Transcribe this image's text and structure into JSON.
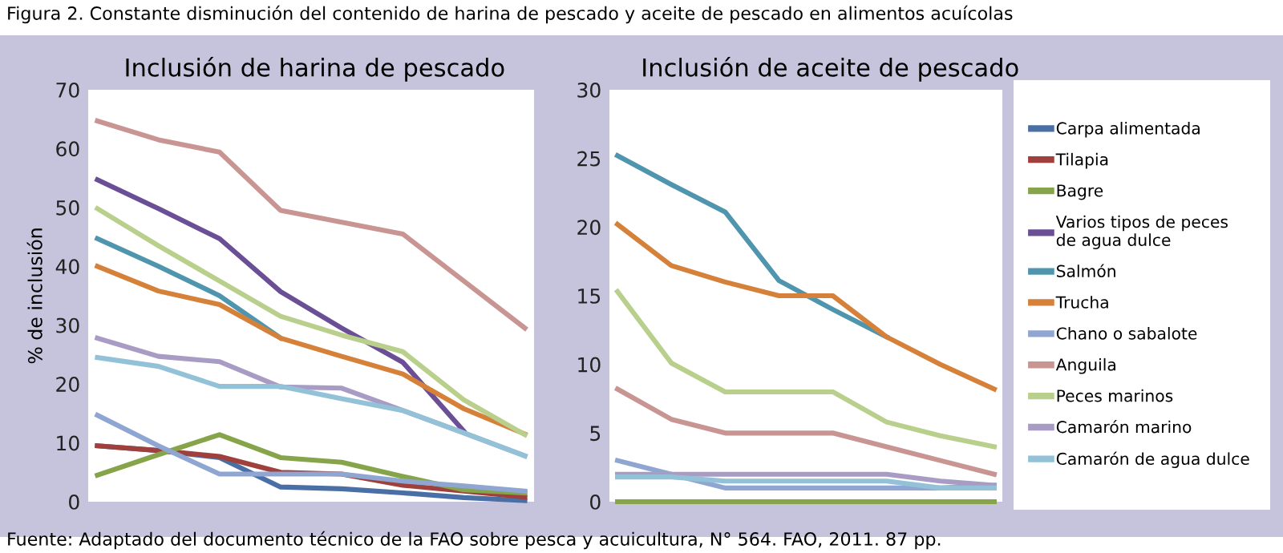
{
  "chart_data": [
    {
      "type": "line",
      "title": "Inclusión de harina de pescado",
      "ylabel": "% de inclusión",
      "annotations": [
        "Figura 2. Constante disminución del contenido de harina de pescado y aceite de pescado en alimentos acuícolas"
      ],
      "categories": [
        null,
        null,
        null,
        null,
        null,
        null,
        null,
        null
      ],
      "ylim": [
        0,
        70
      ],
      "yticks": [
        0,
        10,
        20,
        30,
        40,
        50,
        60,
        70
      ],
      "grid": false,
      "legend": "right",
      "marker": "none",
      "line_style": "solid",
      "series": [
        {
          "name": "Carpa alimentada",
          "color": "#4a6fa5",
          "values": [
            9.5,
            8.7,
            7.5,
            2.5,
            2.2,
            1.5,
            0.7,
            0.2
          ]
        },
        {
          "name": "Tilapia",
          "color": "#a0403c",
          "values": [
            9.5,
            8.7,
            7.7,
            5,
            4.7,
            2.8,
            1.8,
            0.8
          ]
        },
        {
          "name": "Bagre",
          "color": "#86a44a",
          "values": [
            4.5,
            8,
            11.4,
            7.5,
            6.7,
            4.3,
            2,
            1.5
          ]
        },
        {
          "name": "Varios tipos de peces de agua dulce",
          "color": "#6a4f96",
          "values": [
            54.7,
            49.8,
            44.7,
            35.7,
            29.5,
            23.7,
            12,
            null
          ]
        },
        {
          "name": "Salmón",
          "color": "#4f95ad",
          "values": [
            44.7,
            40,
            35,
            27.8,
            null,
            null,
            null,
            null
          ]
        },
        {
          "name": "Trucha",
          "color": "#d6813a",
          "values": [
            40,
            35.8,
            33.5,
            27.8,
            24.7,
            21.7,
            15.8,
            11.5
          ]
        },
        {
          "name": "Chano o sabalote",
          "color": "#8fa6d2",
          "values": [
            14.7,
            9.5,
            4.7,
            4.7,
            4.7,
            3.5,
            2.7,
            1.8
          ]
        },
        {
          "name": "Anguila",
          "color": "#c89593",
          "values": [
            64.7,
            61.5,
            59.4,
            49.5,
            47.5,
            45.5,
            37.5,
            29.5
          ]
        },
        {
          "name": "Peces marinos",
          "color": "#b9cf8c",
          "values": [
            49.8,
            43.5,
            37.5,
            31.5,
            28.3,
            25.5,
            17.3,
            11.4
          ]
        },
        {
          "name": "Camarón marino",
          "color": "#a89cc4",
          "values": [
            27.8,
            24.7,
            23.8,
            19.5,
            19.3,
            15.5,
            11.7,
            7.8
          ]
        },
        {
          "name": "Camarón de agua dulce",
          "color": "#93c2d8",
          "values": [
            24.5,
            23,
            19.6,
            19.6,
            17.5,
            15.5,
            11.7,
            7.8
          ]
        }
      ]
    },
    {
      "type": "line",
      "title": "Inclusión de aceite de pescado",
      "annotations": [
        "Fuente: Adaptado del documento técnico de la FAO sobre pesca y acuicultura, N° 564. FAO, 2011. 87 pp."
      ],
      "categories": [
        null,
        null,
        null,
        null,
        null,
        null,
        null,
        null
      ],
      "ylim": [
        0,
        30
      ],
      "yticks": [
        0,
        5,
        10,
        15,
        20,
        25,
        30
      ],
      "grid": false,
      "marker": "none",
      "line_style": "solid",
      "series": [
        {
          "color": "#86a44a",
          "values": [
            0,
            0,
            0,
            0,
            0,
            0,
            0,
            0
          ]
        },
        {
          "color": "#4f95ad",
          "values": [
            25.2,
            23.1,
            21.1,
            16.1,
            14,
            12,
            null,
            null
          ]
        },
        {
          "color": "#d6813a",
          "values": [
            20.2,
            17.2,
            16,
            15,
            15,
            12,
            10,
            8.2
          ]
        },
        {
          "color": "#8fa6d2",
          "values": [
            3,
            2,
            1,
            1,
            1,
            1,
            1,
            1.2
          ]
        },
        {
          "color": "#c89593",
          "values": [
            8.2,
            6,
            5,
            5,
            5,
            4,
            3,
            2
          ]
        },
        {
          "color": "#b9cf8c",
          "values": [
            15.3,
            10.1,
            8,
            8,
            8,
            5.8,
            4.8,
            4
          ]
        },
        {
          "color": "#a89cc4",
          "values": [
            2,
            2,
            2,
            2,
            2,
            2,
            1.5,
            1.2
          ]
        },
        {
          "color": "#93c2d8",
          "values": [
            1.8,
            1.8,
            1.5,
            1.5,
            1.5,
            1.5,
            1,
            1
          ]
        }
      ]
    }
  ]
}
